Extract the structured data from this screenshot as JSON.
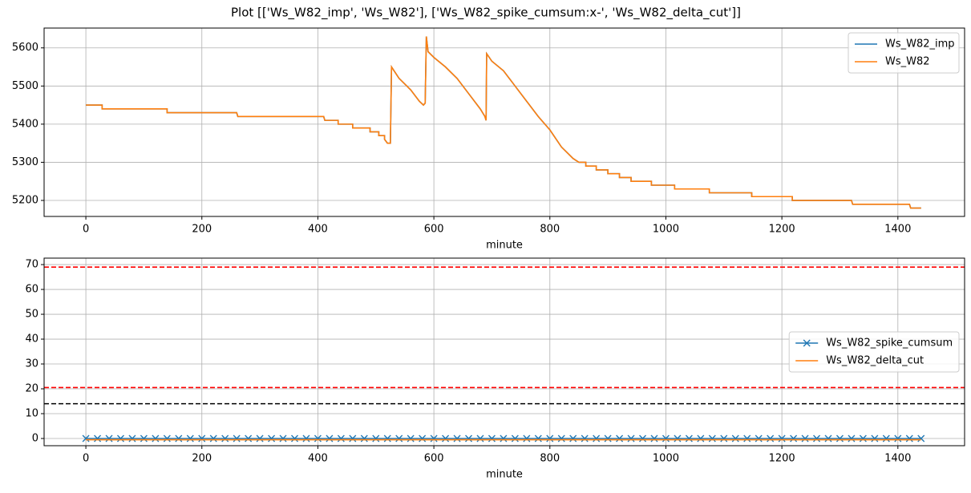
{
  "title": "Plot [['Ws_W82_imp', 'Ws_W82'], ['Ws_W82_spike_cumsum:x-', 'Ws_W82_delta_cut']]",
  "chart_data": [
    {
      "type": "line",
      "xlabel": "minute",
      "x": [
        0,
        28,
        28,
        140,
        140,
        260,
        262,
        410,
        412,
        435,
        435,
        460,
        460,
        490,
        490,
        505,
        505,
        515,
        515,
        520,
        525,
        527,
        540,
        560,
        575,
        582,
        585,
        587,
        590,
        600,
        620,
        640,
        660,
        680,
        688,
        690,
        691,
        700,
        720,
        740,
        760,
        780,
        800,
        820,
        840,
        850,
        862,
        862,
        880,
        880,
        900,
        900,
        920,
        920,
        940,
        940,
        975,
        975,
        1015,
        1015,
        1075,
        1075,
        1148,
        1148,
        1218,
        1218,
        1320,
        1322,
        1420,
        1422,
        1440
      ],
      "series": [
        {
          "name": "Ws_W82_imp",
          "color": "#1f77b4",
          "values": [
            5450,
            5450,
            5440,
            5440,
            5430,
            5430,
            5420,
            5420,
            5410,
            5410,
            5400,
            5400,
            5390,
            5390,
            5380,
            5380,
            5370,
            5370,
            5360,
            5350,
            5350,
            5550,
            5520,
            5490,
            5460,
            5450,
            5455,
            5630,
            5590,
            5575,
            5550,
            5520,
            5480,
            5440,
            5420,
            5410,
            5585,
            5565,
            5540,
            5500,
            5460,
            5420,
            5385,
            5340,
            5310,
            5300,
            5300,
            5290,
            5290,
            5280,
            5280,
            5270,
            5270,
            5260,
            5260,
            5250,
            5250,
            5240,
            5240,
            5230,
            5230,
            5220,
            5220,
            5210,
            5210,
            5200,
            5200,
            5190,
            5190,
            5180,
            5180
          ]
        },
        {
          "name": "Ws_W82",
          "color": "#ff7f0e",
          "values": [
            5450,
            5450,
            5440,
            5440,
            5430,
            5430,
            5420,
            5420,
            5410,
            5410,
            5400,
            5400,
            5390,
            5390,
            5380,
            5380,
            5370,
            5370,
            5360,
            5350,
            5350,
            5550,
            5520,
            5490,
            5460,
            5450,
            5455,
            5630,
            5590,
            5575,
            5550,
            5520,
            5480,
            5440,
            5420,
            5410,
            5585,
            5565,
            5540,
            5500,
            5460,
            5420,
            5385,
            5340,
            5310,
            5300,
            5300,
            5290,
            5290,
            5280,
            5280,
            5270,
            5270,
            5260,
            5260,
            5250,
            5250,
            5240,
            5240,
            5230,
            5230,
            5220,
            5220,
            5210,
            5210,
            5200,
            5200,
            5190,
            5190,
            5180,
            5180
          ]
        }
      ],
      "xlim": [
        -72,
        1515
      ],
      "xticks": [
        0,
        200,
        400,
        600,
        800,
        1000,
        1200,
        1400
      ],
      "ylim": [
        5158,
        5652
      ],
      "yticks": [
        5200,
        5300,
        5400,
        5500,
        5600
      ],
      "grid": true,
      "legend": "upper right"
    },
    {
      "type": "line",
      "xlabel": "minute",
      "series": [
        {
          "name": "Ws_W82_spike_cumsum",
          "color": "#1f77b4",
          "marker": "x",
          "x": [
            0,
            20,
            40,
            60,
            80,
            100,
            120,
            140,
            160,
            180,
            200,
            220,
            240,
            260,
            280,
            300,
            320,
            340,
            360,
            380,
            400,
            420,
            440,
            460,
            480,
            500,
            520,
            540,
            560,
            580,
            600,
            620,
            640,
            660,
            680,
            700,
            720,
            740,
            760,
            780,
            800,
            820,
            840,
            860,
            880,
            900,
            920,
            940,
            960,
            980,
            1000,
            1020,
            1040,
            1060,
            1080,
            1100,
            1120,
            1140,
            1160,
            1180,
            1200,
            1220,
            1240,
            1260,
            1280,
            1300,
            1320,
            1340,
            1360,
            1380,
            1400,
            1420,
            1440
          ],
          "values": [
            0,
            0,
            0,
            0,
            0,
            0,
            0,
            0,
            0,
            0,
            0,
            0,
            0,
            0,
            0,
            0,
            0,
            0,
            0,
            0,
            0,
            0,
            0,
            0,
            0,
            0,
            0,
            0,
            0,
            0,
            0,
            0,
            0,
            0,
            0,
            0,
            0,
            0,
            0,
            0,
            0,
            0,
            0,
            0,
            0,
            0,
            0,
            0,
            0,
            0,
            0,
            0,
            0,
            0,
            0,
            0,
            0,
            0,
            0,
            0,
            0,
            0,
            0,
            0,
            0,
            0,
            0,
            0,
            0,
            0,
            0,
            0,
            0
          ]
        },
        {
          "name": "Ws_W82_delta_cut",
          "color": "#ff7f0e",
          "x": [
            0,
            1440
          ],
          "values": [
            -0.5,
            -0.5
          ]
        }
      ],
      "hlines": [
        {
          "value": 69,
          "color": "red"
        },
        {
          "value": 20.5,
          "color": "red"
        },
        {
          "value": 14,
          "color": "black"
        }
      ],
      "xlim": [
        -72,
        1515
      ],
      "xticks": [
        0,
        200,
        400,
        600,
        800,
        1000,
        1200,
        1400
      ],
      "ylim": [
        -2.9,
        72.6
      ],
      "yticks": [
        0,
        10,
        20,
        30,
        40,
        50,
        60,
        70
      ],
      "grid": true,
      "legend": "center right"
    }
  ]
}
